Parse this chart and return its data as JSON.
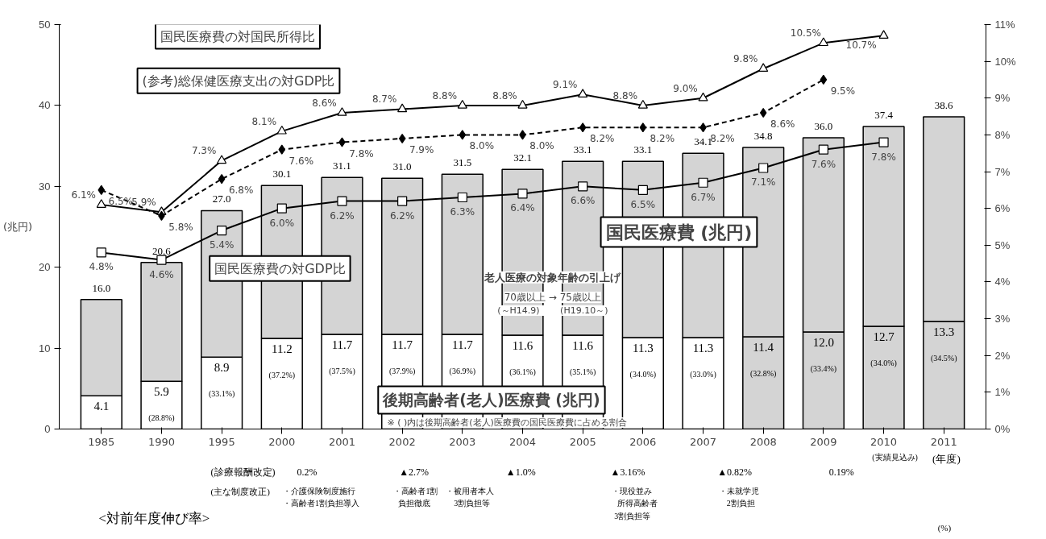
{
  "chart_data": {
    "type": "bar",
    "stacked": true,
    "categories": [
      "1985",
      "1990",
      "1995",
      "2000",
      "2001",
      "2002",
      "2003",
      "2004",
      "2005",
      "2006",
      "2007",
      "2008",
      "2009",
      "2010",
      "2011"
    ],
    "xlabel": "(年度)",
    "ylabel": "(兆円)",
    "ylim": [
      0,
      50
    ],
    "yticks": [
      0,
      10,
      20,
      30,
      40,
      50
    ],
    "y2lim": [
      0,
      11
    ],
    "y2ticks": [
      {
        "value": 0,
        "label": "0%"
      },
      {
        "value": 1,
        "label": "1%"
      },
      {
        "value": 2,
        "label": "2%"
      },
      {
        "value": 3,
        "label": "3%"
      },
      {
        "value": 4,
        "label": "4%"
      },
      {
        "value": 5,
        "label": "5%"
      },
      {
        "value": 6,
        "label": "6%"
      },
      {
        "value": 7,
        "label": "7%"
      },
      {
        "value": 8,
        "label": "8%"
      },
      {
        "value": 9,
        "label": "9%"
      },
      {
        "value": 10,
        "label": "10%"
      },
      {
        "value": 11,
        "label": "11%"
      }
    ],
    "series": [
      {
        "name": "後期高齢者(老人)医療費 (兆円)",
        "colors": [
          "#ffffff",
          "#ffffff",
          "#ffffff",
          "#ffffff",
          "#ffffff",
          "#ffffff",
          "#ffffff",
          "#ffffff",
          "#ffffff",
          "#ffffff",
          "#ffffff",
          "#d4d4d4",
          "#d4d4d4",
          "#d4d4d4",
          "#d4d4d4"
        ],
        "values": [
          4.1,
          5.9,
          8.9,
          11.2,
          11.7,
          11.7,
          11.7,
          11.6,
          11.6,
          11.3,
          11.3,
          11.4,
          12.0,
          12.7,
          13.3
        ],
        "value_labels": [
          "4.1\n(25.4%)",
          "5.9\n(28.8%)",
          "8.9\n(33.1%)",
          "11.2\n(37.2%)",
          "11.7\n(37.5%)",
          "11.7\n(37.9%)",
          "11.7\n(36.9%)",
          "11.6\n(36.1%)",
          "11.6\n(35.1%)",
          "11.3\n(34.0%)",
          "11.3\n(33.0%)",
          "11.4\n(32.8%)",
          "12.0\n(33.4%)",
          "12.7\n(34.0%)",
          "13.3\n(34.5%)"
        ]
      },
      {
        "name": "国民医療費 (兆円)",
        "color": "#d4d4d4",
        "values": [
          11.9,
          14.7,
          18.1,
          18.9,
          19.4,
          19.3,
          19.8,
          20.5,
          21.5,
          21.8,
          22.8,
          23.4,
          24.0,
          24.7,
          25.3
        ]
      },
      {
        "name": "国民医療費の対国民所得比",
        "type": "line",
        "axis": "y2",
        "color": "#000000",
        "marker": "triangle",
        "line_style": "solid",
        "values": [
          6.1,
          5.9,
          7.3,
          8.1,
          8.6,
          8.7,
          8.8,
          8.8,
          9.1,
          8.8,
          9.0,
          9.8,
          10.5,
          10.7,
          null
        ],
        "value_labels": [
          "6.1%",
          "5.9%",
          "7.3%",
          "8.1%",
          "8.6%",
          "8.7%",
          "8.8%",
          "8.8%",
          "9.1%",
          "8.8%",
          "9.0%",
          "9.8%",
          "10.5%",
          "10.7%",
          null
        ]
      },
      {
        "name": "(参考)総保健医療支出の対GDP比",
        "type": "line",
        "axis": "y2",
        "color": "#000000",
        "marker": "diamond",
        "line_style": "dashed",
        "values": [
          6.5,
          5.8,
          6.8,
          7.6,
          7.8,
          7.9,
          8.0,
          8.0,
          8.2,
          8.2,
          8.2,
          8.6,
          9.5,
          null,
          null
        ],
        "value_labels": [
          "6.5%",
          "5.8%",
          "6.8%",
          "7.6%",
          "7.8%",
          "7.9%",
          "8.0%",
          "8.0%",
          "8.2%",
          "8.2%",
          "8.2%",
          "8.6%",
          "9.5%",
          null,
          null
        ]
      },
      {
        "name": "国民医療費の対GDP比",
        "type": "line",
        "axis": "y2",
        "color": "#000000",
        "marker": "square",
        "line_style": "solid",
        "values": [
          4.8,
          4.6,
          5.4,
          6.0,
          6.2,
          6.2,
          6.3,
          6.4,
          6.6,
          6.5,
          6.7,
          7.1,
          7.6,
          7.8,
          null
        ],
        "value_labels": [
          "4.8%",
          "4.6%",
          "5.4%",
          "6.0%",
          "6.2%",
          "6.2%",
          "6.3%",
          "6.4%",
          "6.6%",
          "6.5%",
          "6.7%",
          "7.1%",
          "7.6%",
          "7.8%",
          null
        ]
      }
    ],
    "totals": [
      "16.0",
      "20.6",
      "27.0",
      "30.1",
      "31.1",
      "31.0",
      "31.5",
      "32.1",
      "33.1",
      "33.1",
      "34.1",
      "34.8",
      "36.0",
      "37.4",
      "38.6"
    ],
    "annotations": [
      "※ ( )内は後期高齢者(老人)医療費の国民医療費に占める割合",
      "老人医療の対象年齢の引上げ",
      "70歳以上 → 75歳以上",
      "(～H14.9)　　 (H19.10～)",
      "(実績見込み)",
      "(診療報酬改定)",
      "0.2%",
      "▲2.7%",
      "▲1.0%",
      "▲3.16%",
      "▲0.82%",
      "0.19%",
      "(主な制度改正)",
      "・介護保険制度施行",
      "・高齢者1割負担導入",
      "・高齢者1割",
      "負担徹底",
      "・被用者本人",
      "3割負担等",
      "・現役並み",
      "所得高齢者",
      "3割負担等",
      "・未就学児",
      "2割負担",
      "<対前年度伸び率>",
      "(%)"
    ]
  }
}
